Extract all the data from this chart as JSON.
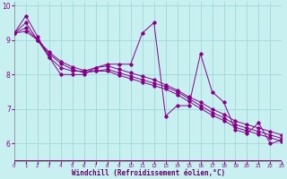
{
  "background_color": "#c8f0f0",
  "grid_color": "#a0d8d8",
  "line_color": "#880088",
  "axis_bar_color": "#660066",
  "xlim": [
    0,
    23
  ],
  "ylim": [
    5.5,
    10.1
  ],
  "xticks": [
    0,
    1,
    2,
    3,
    4,
    5,
    6,
    7,
    8,
    9,
    10,
    11,
    12,
    13,
    14,
    15,
    16,
    17,
    18,
    19,
    20,
    21,
    22,
    23
  ],
  "yticks": [
    6,
    7,
    8,
    9,
    10
  ],
  "xlabel": "Windchill (Refroidissement éolien,°C)",
  "line1": [
    9.2,
    9.7,
    9.1,
    8.5,
    8.0,
    8.0,
    8.0,
    8.2,
    8.3,
    8.3,
    8.3,
    9.2,
    9.5,
    6.8,
    7.1,
    7.1,
    8.6,
    7.5,
    7.2,
    6.4,
    6.3,
    6.6,
    6.0,
    6.1
  ],
  "line2": [
    9.2,
    9.5,
    9.0,
    8.5,
    8.2,
    8.1,
    8.1,
    8.2,
    8.25,
    8.15,
    8.05,
    7.95,
    7.85,
    7.7,
    7.55,
    7.35,
    7.2,
    7.0,
    6.85,
    6.65,
    6.55,
    6.45,
    6.35,
    6.25
  ],
  "line3": [
    9.2,
    9.35,
    9.0,
    8.6,
    8.32,
    8.15,
    8.05,
    8.1,
    8.15,
    8.05,
    7.95,
    7.85,
    7.75,
    7.65,
    7.5,
    7.3,
    7.1,
    6.9,
    6.75,
    6.55,
    6.45,
    6.35,
    6.25,
    6.15
  ],
  "line4": [
    9.2,
    9.25,
    9.0,
    8.65,
    8.38,
    8.22,
    8.12,
    8.1,
    8.1,
    7.98,
    7.88,
    7.78,
    7.68,
    7.58,
    7.42,
    7.22,
    7.02,
    6.82,
    6.67,
    6.47,
    6.37,
    6.27,
    6.17,
    6.07
  ]
}
